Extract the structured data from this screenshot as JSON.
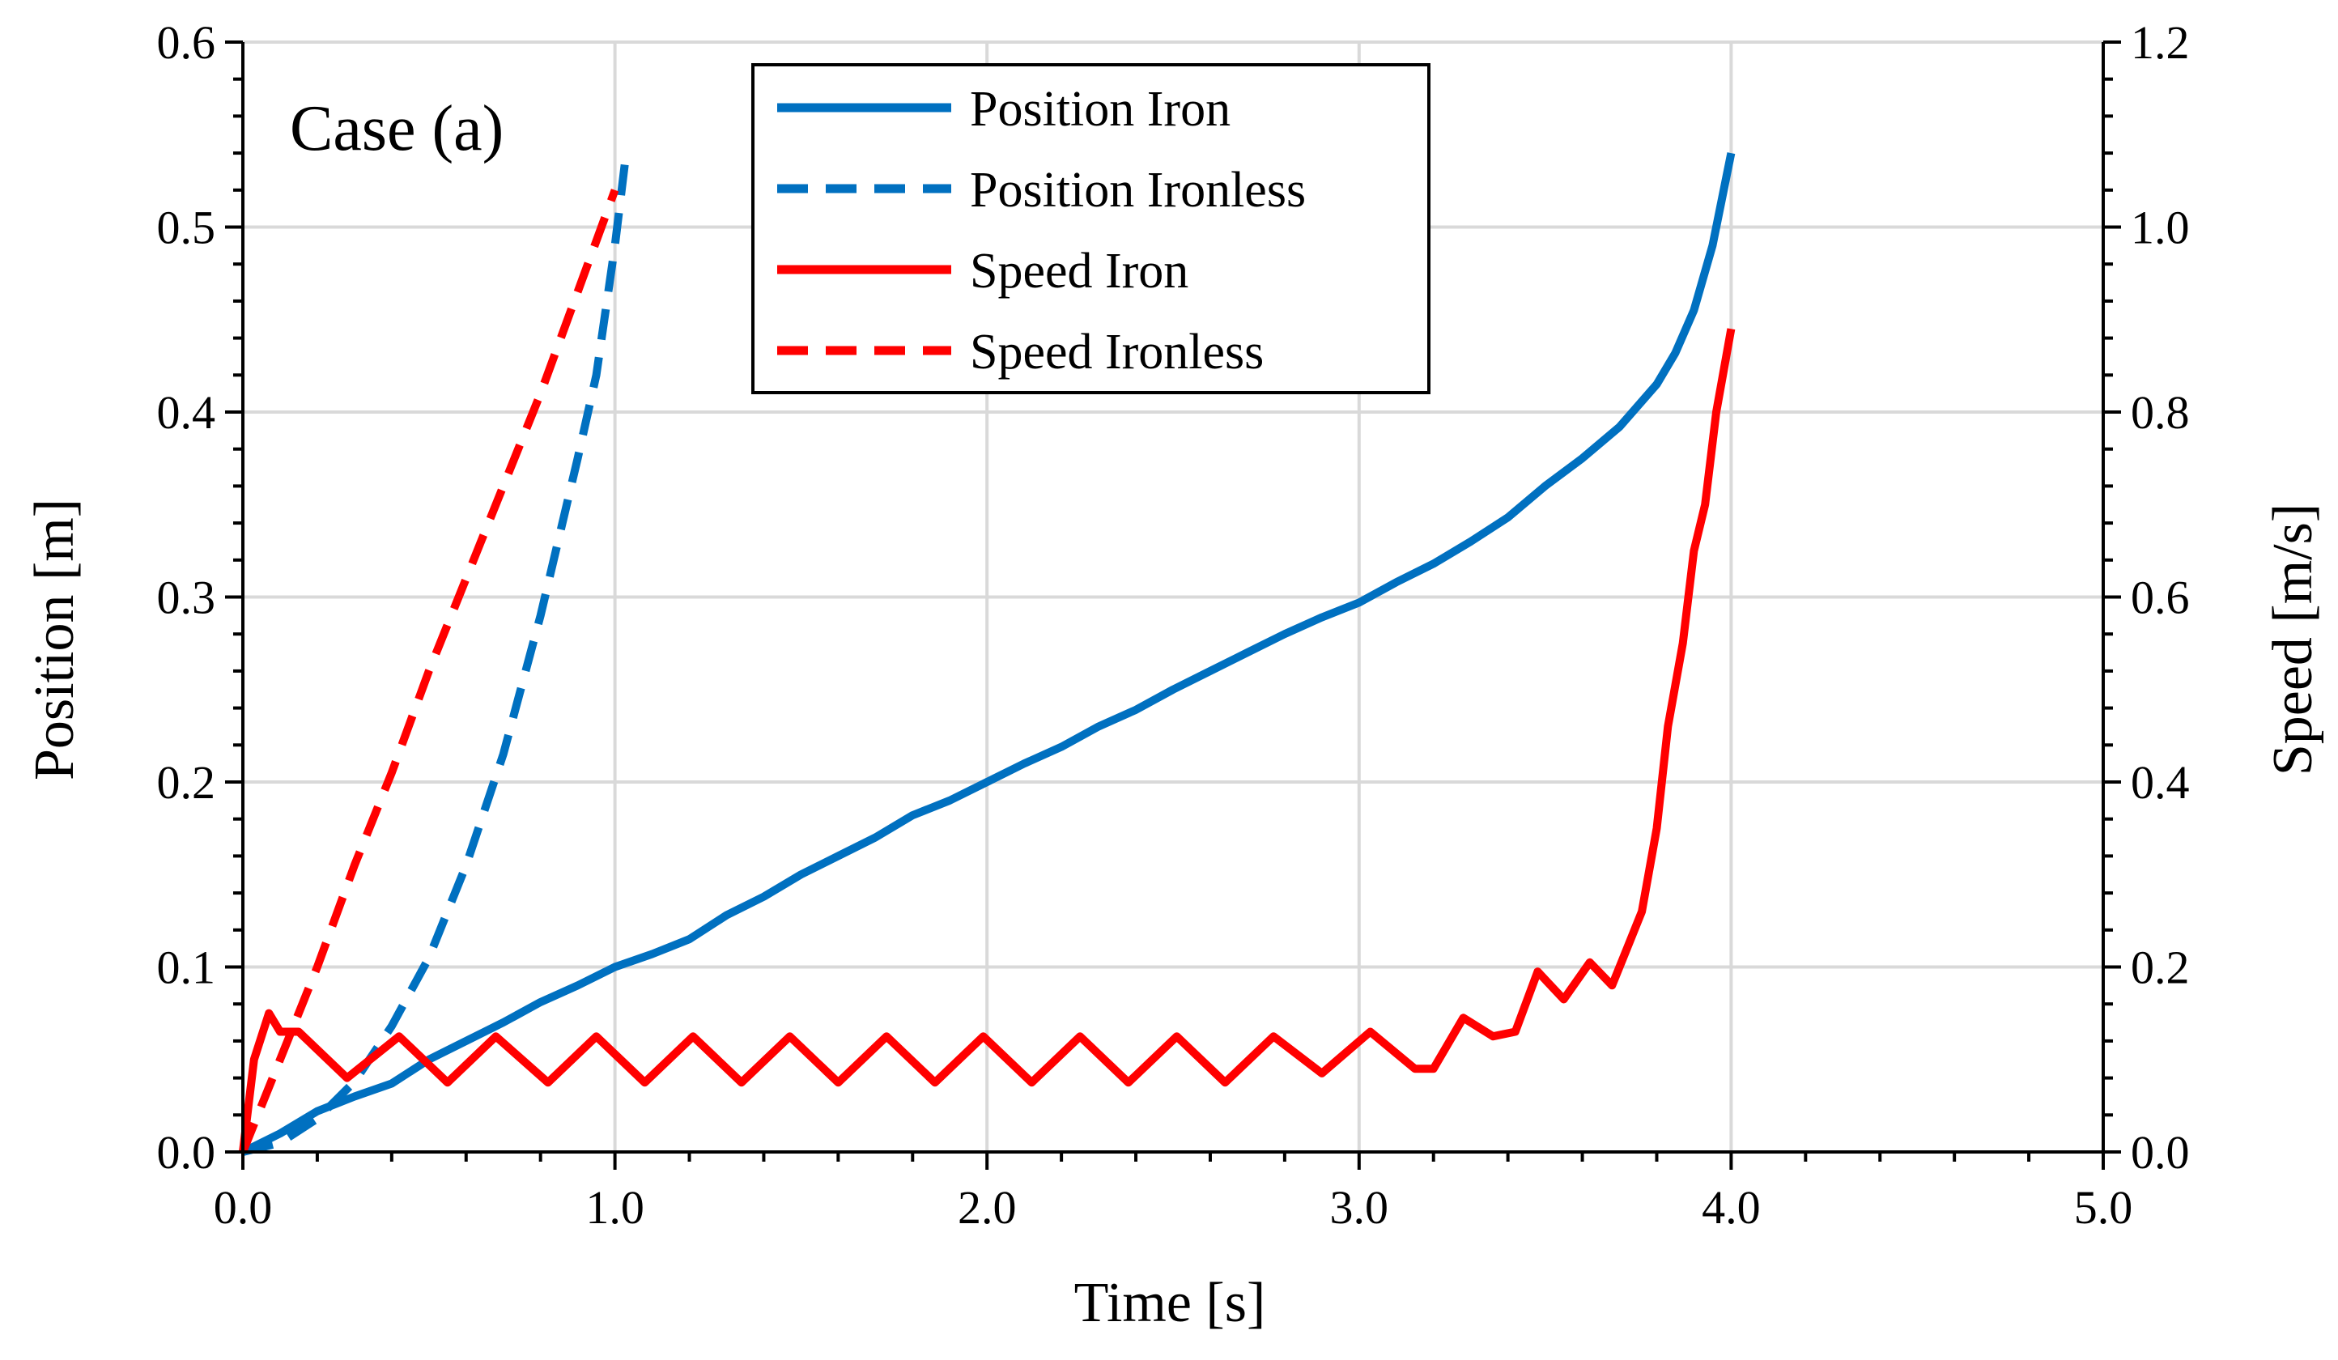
{
  "chart_data": {
    "type": "line",
    "title": "",
    "annotation": "Case (a)",
    "xlabel": "Time [s]",
    "ylabel": "Position [m]",
    "y2label": "Speed [m/s]",
    "xlim": [
      0,
      5
    ],
    "ylim": [
      0,
      0.6
    ],
    "y2lim": [
      0,
      1.2
    ],
    "xticks": [
      0,
      1,
      2,
      3,
      4,
      5
    ],
    "xtick_labels": [
      "0.0",
      "1.0",
      "2.0",
      "3.0",
      "4.0",
      "5.0"
    ],
    "yticks": [
      0,
      0.1,
      0.2,
      0.3,
      0.4,
      0.5,
      0.6
    ],
    "ytick_labels": [
      "0.0",
      "0.1",
      "0.2",
      "0.3",
      "0.4",
      "0.5",
      "0.6"
    ],
    "y2ticks": [
      0,
      0.2,
      0.4,
      0.6,
      0.8,
      1.0,
      1.2
    ],
    "y2tick_labels": [
      "0.0",
      "0.2",
      "0.4",
      "0.6",
      "0.8",
      "1.0",
      "1.2"
    ],
    "grid": true,
    "legend_position": "top-center",
    "series": [
      {
        "name": "Position Iron",
        "axis": "left",
        "color": "#0070C0",
        "dash": false,
        "points": [
          [
            0,
            0
          ],
          [
            0.1,
            0.01
          ],
          [
            0.2,
            0.022
          ],
          [
            0.3,
            0.03
          ],
          [
            0.4,
            0.037
          ],
          [
            0.5,
            0.05
          ],
          [
            0.6,
            0.06
          ],
          [
            0.7,
            0.07
          ],
          [
            0.8,
            0.081
          ],
          [
            0.9,
            0.09
          ],
          [
            1.0,
            0.1
          ],
          [
            1.1,
            0.107
          ],
          [
            1.2,
            0.115
          ],
          [
            1.3,
            0.128
          ],
          [
            1.4,
            0.138
          ],
          [
            1.5,
            0.15
          ],
          [
            1.6,
            0.16
          ],
          [
            1.7,
            0.17
          ],
          [
            1.8,
            0.182
          ],
          [
            1.9,
            0.19
          ],
          [
            2.0,
            0.2
          ],
          [
            2.1,
            0.21
          ],
          [
            2.2,
            0.219
          ],
          [
            2.3,
            0.23
          ],
          [
            2.4,
            0.239
          ],
          [
            2.5,
            0.25
          ],
          [
            2.6,
            0.26
          ],
          [
            2.7,
            0.27
          ],
          [
            2.8,
            0.28
          ],
          [
            2.9,
            0.289
          ],
          [
            3.0,
            0.297
          ],
          [
            3.1,
            0.308
          ],
          [
            3.2,
            0.318
          ],
          [
            3.3,
            0.33
          ],
          [
            3.4,
            0.343
          ],
          [
            3.5,
            0.36
          ],
          [
            3.6,
            0.375
          ],
          [
            3.7,
            0.392
          ],
          [
            3.8,
            0.415
          ],
          [
            3.85,
            0.432
          ],
          [
            3.9,
            0.455
          ],
          [
            3.95,
            0.49
          ],
          [
            4.0,
            0.54
          ]
        ]
      },
      {
        "name": "Position Ironless",
        "axis": "left",
        "color": "#0070C0",
        "dash": true,
        "points": [
          [
            0,
            0
          ],
          [
            0.1,
            0.005
          ],
          [
            0.2,
            0.018
          ],
          [
            0.3,
            0.038
          ],
          [
            0.4,
            0.068
          ],
          [
            0.5,
            0.105
          ],
          [
            0.6,
            0.155
          ],
          [
            0.7,
            0.215
          ],
          [
            0.8,
            0.29
          ],
          [
            0.9,
            0.375
          ],
          [
            0.95,
            0.42
          ],
          [
            1.0,
            0.49
          ],
          [
            1.03,
            0.54
          ]
        ]
      },
      {
        "name": "Speed Iron",
        "axis": "right",
        "color": "#FF0000",
        "dash": false,
        "points": [
          [
            0,
            0
          ],
          [
            0.03,
            0.1
          ],
          [
            0.07,
            0.15
          ],
          [
            0.1,
            0.13
          ],
          [
            0.15,
            0.13
          ],
          [
            0.28,
            0.08
          ],
          [
            0.42,
            0.125
          ],
          [
            0.55,
            0.075
          ],
          [
            0.68,
            0.125
          ],
          [
            0.82,
            0.075
          ],
          [
            0.95,
            0.125
          ],
          [
            1.08,
            0.075
          ],
          [
            1.21,
            0.125
          ],
          [
            1.34,
            0.075
          ],
          [
            1.47,
            0.125
          ],
          [
            1.6,
            0.075
          ],
          [
            1.73,
            0.125
          ],
          [
            1.86,
            0.075
          ],
          [
            1.99,
            0.125
          ],
          [
            2.12,
            0.075
          ],
          [
            2.25,
            0.125
          ],
          [
            2.38,
            0.075
          ],
          [
            2.51,
            0.125
          ],
          [
            2.64,
            0.075
          ],
          [
            2.77,
            0.125
          ],
          [
            2.9,
            0.085
          ],
          [
            3.03,
            0.13
          ],
          [
            3.15,
            0.09
          ],
          [
            3.2,
            0.09
          ],
          [
            3.28,
            0.145
          ],
          [
            3.36,
            0.125
          ],
          [
            3.42,
            0.13
          ],
          [
            3.48,
            0.195
          ],
          [
            3.55,
            0.165
          ],
          [
            3.62,
            0.205
          ],
          [
            3.68,
            0.18
          ],
          [
            3.72,
            0.22
          ],
          [
            3.76,
            0.26
          ],
          [
            3.8,
            0.35
          ],
          [
            3.83,
            0.46
          ],
          [
            3.87,
            0.55
          ],
          [
            3.9,
            0.65
          ],
          [
            3.93,
            0.7
          ],
          [
            3.96,
            0.8
          ],
          [
            4.0,
            0.89
          ]
        ]
      },
      {
        "name": "Speed Ironless",
        "axis": "right",
        "color": "#FF0000",
        "dash": true,
        "points": [
          [
            0,
            0
          ],
          [
            0.1,
            0.1
          ],
          [
            0.2,
            0.2
          ],
          [
            0.3,
            0.31
          ],
          [
            0.4,
            0.41
          ],
          [
            0.5,
            0.52
          ],
          [
            0.6,
            0.62
          ],
          [
            0.7,
            0.72
          ],
          [
            0.8,
            0.82
          ],
          [
            0.9,
            0.93
          ],
          [
            1.0,
            1.04
          ]
        ]
      }
    ]
  }
}
